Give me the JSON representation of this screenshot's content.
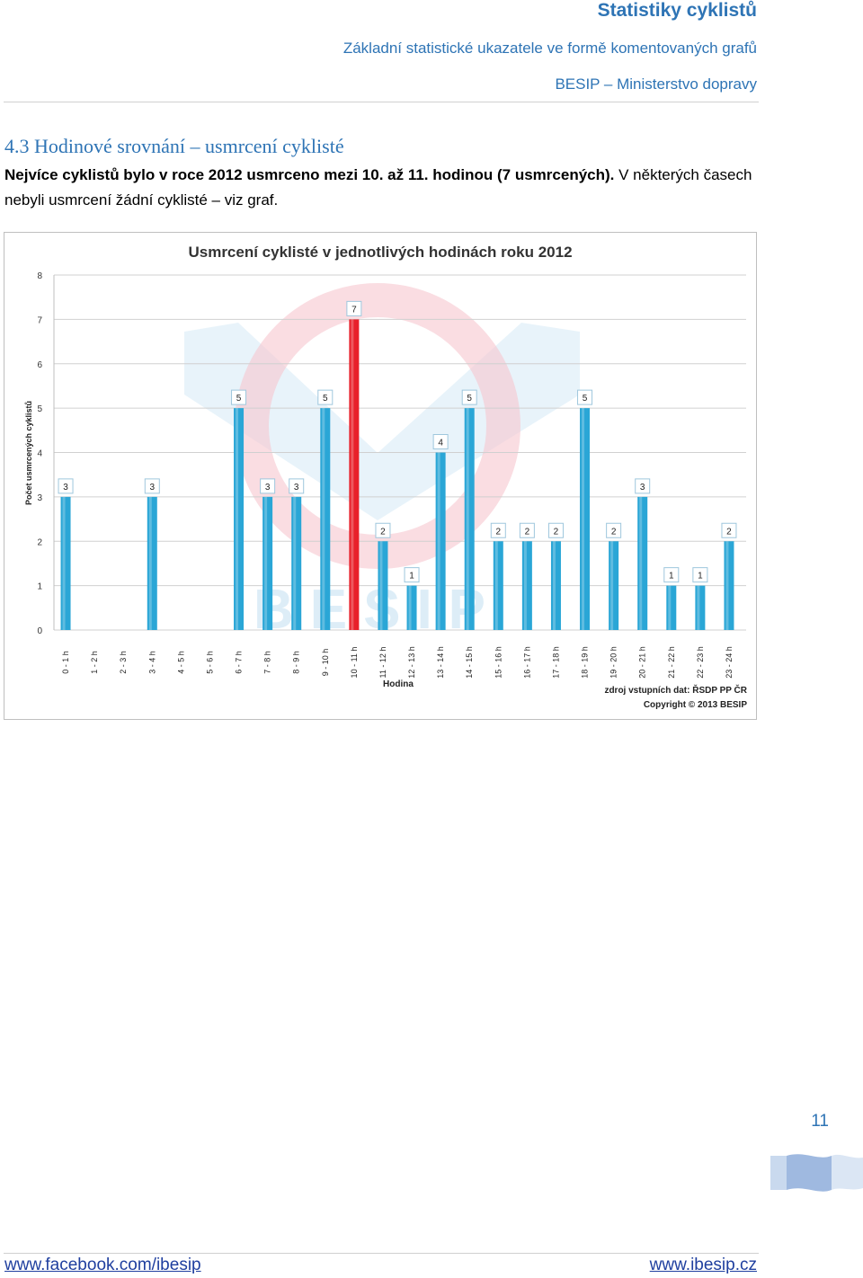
{
  "header": {
    "title": "Statistiky cyklistů",
    "subtitle": "Základní statistické ukazatele ve formě komentovaných grafů",
    "org": "BESIP – Ministerstvo dopravy"
  },
  "section": {
    "title": "4.3 Hodinové srovnání – usmrcení cyklisté",
    "text_bold": "Nejvíce cyklistů bylo v roce 2012 usmrceno mezi 10. až 11. hodinou (7 usmrcených).",
    "text_normal": " V některých časech nebyli usmrcení žádní cyklisté – viz graf."
  },
  "chart_data": {
    "type": "bar",
    "title": "Usmrcení cyklisté v jednotlivých hodinách roku 2012",
    "xlabel": "Hodina",
    "ylabel": "Počet usmrcených cyklistů",
    "ylim": [
      0,
      8
    ],
    "yticks": [
      0,
      1,
      2,
      3,
      4,
      5,
      6,
      7,
      8
    ],
    "grid": true,
    "categories": [
      "0 - 1 h",
      "1 - 2 h",
      "2 - 3 h",
      "3 - 4 h",
      "4 - 5 h",
      "5 - 6 h",
      "6 - 7 h",
      "7 - 8 h",
      "8 - 9 h",
      "9 - 10 h",
      "10 - 11 h",
      "11 - 12 h",
      "12 - 13 h",
      "13 - 14 h",
      "14 - 15 h",
      "15 - 16 h",
      "16 - 17 h",
      "17 - 18 h",
      "18 - 19 h",
      "19 - 20 h",
      "20 - 21 h",
      "21 - 22 h",
      "22 - 23 h",
      "23 - 24 h"
    ],
    "values": [
      3,
      0,
      0,
      3,
      0,
      0,
      5,
      3,
      3,
      5,
      7,
      2,
      1,
      4,
      5,
      2,
      2,
      2,
      5,
      2,
      3,
      1,
      1,
      2
    ],
    "highlight_index": 10,
    "bar_color": "#2aa6d6",
    "highlight_color": "#e8202a",
    "source_line1": "zdroj vstupních dat: ŘSDP PP ČR",
    "source_line2": "Copyright © 2013 BESIP",
    "watermark": "BESIP"
  },
  "page_number": "11",
  "footer": {
    "left": "www.facebook.com/ibesip",
    "right": "www.ibesip.cz"
  }
}
